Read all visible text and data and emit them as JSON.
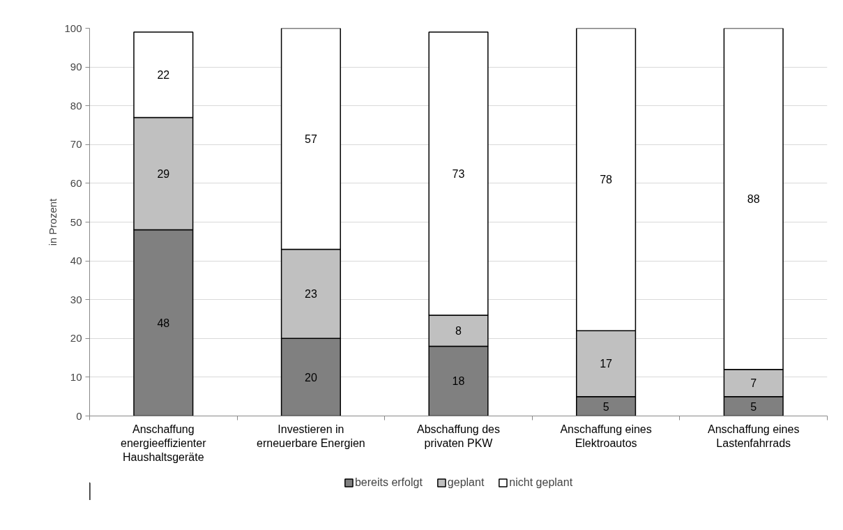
{
  "chart_data": {
    "type": "bar",
    "stacked": true,
    "ylabel": "in Prozent",
    "categories": [
      "Anschaffung energieeffizienter Haushaltsgeräte",
      "Investieren in erneuerbare Energien",
      "Abschaffung des privaten PKW",
      "Anschaffung eines Elektroautos",
      "Anschaffung eines Lastenfahrrads"
    ],
    "series": [
      {
        "name": "bereits erfolgt",
        "color": "#808080",
        "values": [
          48,
          20,
          18,
          5,
          5
        ]
      },
      {
        "name": "geplant",
        "color": "#c0c0c0",
        "values": [
          29,
          23,
          8,
          17,
          7
        ]
      },
      {
        "name": "nicht geplant",
        "color": "#ffffff",
        "values": [
          22,
          57,
          73,
          78,
          88
        ]
      }
    ],
    "ylim": [
      0,
      100
    ],
    "yticks": [
      0,
      10,
      20,
      30,
      40,
      50,
      60,
      70,
      80,
      90,
      100
    ],
    "grid": "y",
    "legend": "bottom",
    "data_labels": true
  }
}
